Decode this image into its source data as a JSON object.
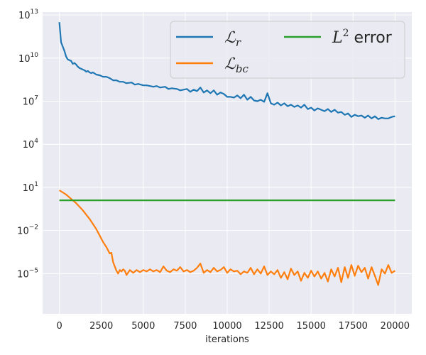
{
  "chart_data": {
    "type": "line",
    "xlabel": "iterations",
    "ylabel": "",
    "title": "",
    "xlim": [
      -1000,
      21000
    ],
    "ylim_log10": [
      -7.8,
      13.2
    ],
    "yscale": "log",
    "grid": true,
    "legend_position": "top-right",
    "x_ticks": [
      0,
      2500,
      5000,
      7500,
      10000,
      12500,
      15000,
      17500,
      20000
    ],
    "y_ticks": [
      {
        "exp": 13,
        "label": "13"
      },
      {
        "exp": 10,
        "label": "10"
      },
      {
        "exp": 7,
        "label": "7"
      },
      {
        "exp": 4,
        "label": "4"
      },
      {
        "exp": 1,
        "label": "1"
      },
      {
        "exp": -2,
        "label": "−2"
      },
      {
        "exp": -5,
        "label": "−5"
      }
    ],
    "series": [
      {
        "name_main": "ℒ",
        "name_sub": "r",
        "color": "#1f77b4",
        "log10_values": [
          [
            0,
            12.5
          ],
          [
            100,
            11.1
          ],
          [
            200,
            10.8
          ],
          [
            300,
            10.5
          ],
          [
            400,
            10.1
          ],
          [
            500,
            9.9
          ],
          [
            600,
            9.85
          ],
          [
            700,
            9.8
          ],
          [
            800,
            9.6
          ],
          [
            900,
            9.65
          ],
          [
            1000,
            9.55
          ],
          [
            1100,
            9.4
          ],
          [
            1200,
            9.3
          ],
          [
            1300,
            9.25
          ],
          [
            1400,
            9.2
          ],
          [
            1500,
            9.15
          ],
          [
            1600,
            9.05
          ],
          [
            1700,
            9.1
          ],
          [
            1800,
            9.0
          ],
          [
            1900,
            8.95
          ],
          [
            2000,
            9.0
          ],
          [
            2200,
            8.85
          ],
          [
            2400,
            8.8
          ],
          [
            2600,
            8.7
          ],
          [
            2800,
            8.7
          ],
          [
            3000,
            8.6
          ],
          [
            3200,
            8.45
          ],
          [
            3400,
            8.45
          ],
          [
            3600,
            8.35
          ],
          [
            3800,
            8.35
          ],
          [
            4000,
            8.25
          ],
          [
            4300,
            8.3
          ],
          [
            4500,
            8.15
          ],
          [
            4700,
            8.2
          ],
          [
            5000,
            8.1
          ],
          [
            5200,
            8.1
          ],
          [
            5400,
            8.05
          ],
          [
            5600,
            8.0
          ],
          [
            5800,
            8.05
          ],
          [
            6000,
            7.95
          ],
          [
            6300,
            8.0
          ],
          [
            6500,
            7.85
          ],
          [
            6700,
            7.9
          ],
          [
            7000,
            7.85
          ],
          [
            7200,
            7.75
          ],
          [
            7400,
            7.8
          ],
          [
            7600,
            7.85
          ],
          [
            7800,
            7.65
          ],
          [
            8000,
            7.8
          ],
          [
            8200,
            7.7
          ],
          [
            8400,
            7.95
          ],
          [
            8600,
            7.6
          ],
          [
            8800,
            7.75
          ],
          [
            9000,
            7.55
          ],
          [
            9200,
            7.75
          ],
          [
            9400,
            7.45
          ],
          [
            9600,
            7.6
          ],
          [
            9800,
            7.5
          ],
          [
            10000,
            7.3
          ],
          [
            10200,
            7.3
          ],
          [
            10400,
            7.25
          ],
          [
            10600,
            7.4
          ],
          [
            10800,
            7.2
          ],
          [
            11000,
            7.45
          ],
          [
            11200,
            7.1
          ],
          [
            11400,
            7.3
          ],
          [
            11600,
            7.05
          ],
          [
            11800,
            7.0
          ],
          [
            12000,
            7.1
          ],
          [
            12200,
            6.95
          ],
          [
            12400,
            7.55
          ],
          [
            12600,
            6.85
          ],
          [
            12800,
            6.75
          ],
          [
            13000,
            6.9
          ],
          [
            13200,
            6.7
          ],
          [
            13400,
            6.85
          ],
          [
            13600,
            6.65
          ],
          [
            13800,
            6.75
          ],
          [
            14000,
            6.6
          ],
          [
            14200,
            6.7
          ],
          [
            14400,
            6.55
          ],
          [
            14600,
            6.75
          ],
          [
            14800,
            6.45
          ],
          [
            15000,
            6.55
          ],
          [
            15200,
            6.35
          ],
          [
            15400,
            6.5
          ],
          [
            15600,
            6.4
          ],
          [
            15800,
            6.3
          ],
          [
            16000,
            6.45
          ],
          [
            16200,
            6.25
          ],
          [
            16400,
            6.4
          ],
          [
            16600,
            6.2
          ],
          [
            16800,
            6.25
          ],
          [
            17000,
            6.05
          ],
          [
            17200,
            6.15
          ],
          [
            17400,
            5.9
          ],
          [
            17600,
            6.05
          ],
          [
            17800,
            5.95
          ],
          [
            18000,
            6.0
          ],
          [
            18200,
            5.85
          ],
          [
            18400,
            6.0
          ],
          [
            18600,
            5.8
          ],
          [
            18800,
            5.95
          ],
          [
            19000,
            5.75
          ],
          [
            19200,
            5.85
          ],
          [
            19400,
            5.8
          ],
          [
            19600,
            5.8
          ],
          [
            19800,
            5.9
          ],
          [
            20000,
            5.95
          ]
        ]
      },
      {
        "name_main": "ℒ",
        "name_sub": "bc",
        "color": "#ff7f0e",
        "log10_values": [
          [
            0,
            0.8
          ],
          [
            200,
            0.65
          ],
          [
            400,
            0.5
          ],
          [
            600,
            0.3
          ],
          [
            800,
            0.1
          ],
          [
            1000,
            -0.1
          ],
          [
            1200,
            -0.35
          ],
          [
            1400,
            -0.6
          ],
          [
            1600,
            -0.9
          ],
          [
            1800,
            -1.2
          ],
          [
            2000,
            -1.55
          ],
          [
            2200,
            -1.9
          ],
          [
            2400,
            -2.35
          ],
          [
            2600,
            -2.8
          ],
          [
            2800,
            -3.15
          ],
          [
            3000,
            -3.6
          ],
          [
            3100,
            -3.55
          ],
          [
            3200,
            -4.2
          ],
          [
            3300,
            -4.5
          ],
          [
            3400,
            -4.8
          ],
          [
            3500,
            -5.0
          ],
          [
            3600,
            -4.75
          ],
          [
            3700,
            -4.85
          ],
          [
            3800,
            -4.7
          ],
          [
            3900,
            -4.8
          ],
          [
            4000,
            -5.1
          ],
          [
            4200,
            -4.75
          ],
          [
            4400,
            -4.95
          ],
          [
            4600,
            -4.75
          ],
          [
            4800,
            -4.9
          ],
          [
            5000,
            -4.75
          ],
          [
            5200,
            -4.85
          ],
          [
            5400,
            -4.7
          ],
          [
            5600,
            -4.85
          ],
          [
            5800,
            -4.75
          ],
          [
            6000,
            -4.9
          ],
          [
            6200,
            -4.5
          ],
          [
            6400,
            -4.8
          ],
          [
            6600,
            -4.9
          ],
          [
            6800,
            -4.7
          ],
          [
            7000,
            -4.8
          ],
          [
            7200,
            -4.55
          ],
          [
            7400,
            -4.85
          ],
          [
            7600,
            -4.75
          ],
          [
            7800,
            -4.9
          ],
          [
            8000,
            -4.8
          ],
          [
            8200,
            -4.6
          ],
          [
            8400,
            -4.3
          ],
          [
            8600,
            -4.95
          ],
          [
            8800,
            -4.75
          ],
          [
            9000,
            -4.9
          ],
          [
            9200,
            -4.6
          ],
          [
            9400,
            -4.85
          ],
          [
            9600,
            -4.75
          ],
          [
            9800,
            -4.55
          ],
          [
            10000,
            -4.95
          ],
          [
            10200,
            -4.7
          ],
          [
            10400,
            -4.85
          ],
          [
            10600,
            -4.8
          ],
          [
            10800,
            -5.05
          ],
          [
            11000,
            -4.85
          ],
          [
            11200,
            -4.95
          ],
          [
            11400,
            -4.6
          ],
          [
            11600,
            -5.05
          ],
          [
            11800,
            -4.7
          ],
          [
            12000,
            -5.0
          ],
          [
            12200,
            -4.5
          ],
          [
            12400,
            -5.1
          ],
          [
            12600,
            -4.85
          ],
          [
            12800,
            -5.05
          ],
          [
            13000,
            -4.75
          ],
          [
            13200,
            -5.3
          ],
          [
            13400,
            -4.9
          ],
          [
            13600,
            -5.4
          ],
          [
            13800,
            -4.65
          ],
          [
            14000,
            -5.1
          ],
          [
            14200,
            -4.85
          ],
          [
            14400,
            -5.5
          ],
          [
            14600,
            -4.95
          ],
          [
            14800,
            -5.3
          ],
          [
            15000,
            -4.8
          ],
          [
            15200,
            -5.2
          ],
          [
            15400,
            -4.85
          ],
          [
            15600,
            -5.35
          ],
          [
            15800,
            -4.95
          ],
          [
            16000,
            -5.55
          ],
          [
            16200,
            -4.7
          ],
          [
            16400,
            -5.2
          ],
          [
            16600,
            -4.6
          ],
          [
            16800,
            -5.6
          ],
          [
            17000,
            -4.55
          ],
          [
            17200,
            -5.3
          ],
          [
            17400,
            -4.4
          ],
          [
            17600,
            -5.15
          ],
          [
            17800,
            -4.45
          ],
          [
            18000,
            -4.9
          ],
          [
            18200,
            -4.6
          ],
          [
            18400,
            -5.35
          ],
          [
            18600,
            -4.55
          ],
          [
            18800,
            -5.15
          ],
          [
            19000,
            -5.8
          ],
          [
            19200,
            -4.7
          ],
          [
            19400,
            -5.0
          ],
          [
            19600,
            -4.4
          ],
          [
            19800,
            -4.95
          ],
          [
            20000,
            -4.8
          ]
        ]
      },
      {
        "name_main": "L",
        "name_sup": "2",
        "name_rest": "error",
        "color": "#2ca02c",
        "log10_values": [
          [
            0,
            0.1
          ],
          [
            20000,
            0.1
          ]
        ]
      }
    ]
  }
}
